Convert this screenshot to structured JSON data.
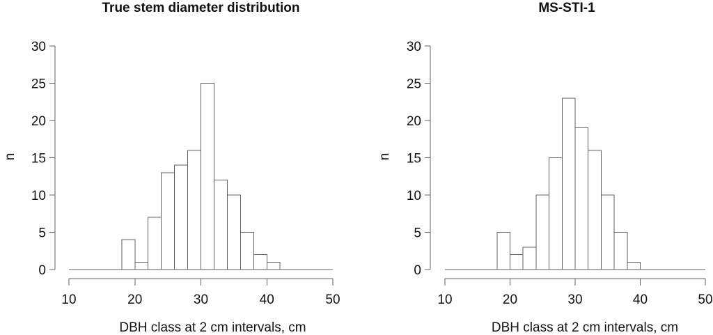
{
  "figure": {
    "background": "#ffffff",
    "text_color": "#111111",
    "line_color": "#606060",
    "bar_fill": "#ffffff",
    "bar_stroke": "#606060"
  },
  "chart_data": [
    {
      "type": "bar",
      "subtype": "histogram",
      "title": "True stem diameter distribution",
      "xlabel": "DBH class at 2 cm intervals, cm",
      "ylabel": "n",
      "bin_start": 18,
      "bin_width": 2,
      "counts": [
        4,
        1,
        7,
        13,
        14,
        16,
        25,
        12,
        10,
        5,
        2,
        1
      ],
      "xlim": [
        10,
        50
      ],
      "ylim": [
        0,
        30
      ],
      "xticks": [
        10,
        20,
        30,
        40,
        50
      ],
      "yticks": [
        0,
        5,
        10,
        15,
        20,
        25,
        30
      ],
      "grid": false,
      "legend": null
    },
    {
      "type": "bar",
      "subtype": "histogram",
      "title": "MS-STI-1",
      "xlabel": "DBH class at 2 cm intervals, cm",
      "ylabel": "n",
      "bin_start": 18,
      "bin_width": 2,
      "counts": [
        5,
        2,
        3,
        10,
        15,
        23,
        19,
        16,
        10,
        5,
        1
      ],
      "xlim": [
        10,
        50
      ],
      "ylim": [
        0,
        30
      ],
      "xticks": [
        10,
        20,
        30,
        40,
        50
      ],
      "yticks": [
        0,
        5,
        10,
        15,
        20,
        25,
        30
      ],
      "grid": false,
      "legend": null
    }
  ]
}
